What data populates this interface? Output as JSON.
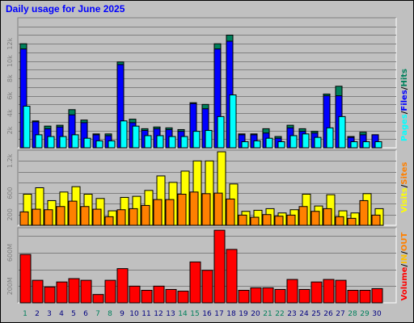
{
  "title": "Daily usage for June 2025",
  "colors": {
    "hits": "#00805c",
    "files": "#0000ff",
    "pages": "#00ffff",
    "sites": "#ff8000",
    "visits": "#ffff00",
    "volume": "#ff0000",
    "in": "#ffc000",
    "out": "#ff8000",
    "weekend": "#00805c"
  },
  "chart_data": [
    {
      "type": "bar",
      "name": "requests",
      "categories": [
        "1",
        "2",
        "3",
        "4",
        "5",
        "6",
        "7",
        "8",
        "9",
        "10",
        "11",
        "12",
        "13",
        "14",
        "15",
        "16",
        "17",
        "18",
        "19",
        "20",
        "21",
        "22",
        "23",
        "24",
        "25",
        "26",
        "27",
        "28",
        "29",
        "30"
      ],
      "ylim": [
        0,
        15000
      ],
      "yticks": [
        "2k",
        "4k",
        "6k",
        "8k",
        "10k",
        "12k"
      ],
      "ytick_values": [
        2000,
        4000,
        6000,
        8000,
        10000,
        12000
      ],
      "legend": [
        "Pages",
        "Files",
        "Hits"
      ],
      "series": [
        {
          "name": "Hits",
          "color": "#00805c",
          "values": [
            12000,
            3100,
            2500,
            2600,
            4400,
            3200,
            1600,
            1600,
            9900,
            3300,
            2200,
            2400,
            2300,
            2100,
            5200,
            5000,
            12000,
            13000,
            1600,
            1600,
            2200,
            1300,
            2600,
            2200,
            1900,
            6200,
            7100,
            1300,
            1800,
            1500
          ]
        },
        {
          "name": "Files",
          "color": "#0000ff",
          "values": [
            11400,
            3000,
            2200,
            2400,
            3800,
            2900,
            1500,
            1400,
            9600,
            2900,
            2000,
            2200,
            2100,
            1900,
            5100,
            4500,
            11400,
            12300,
            1500,
            1500,
            1700,
            1100,
            2300,
            1900,
            1700,
            6000,
            6000,
            1200,
            1500,
            1500
          ]
        },
        {
          "name": "Pages",
          "color": "#00ffff",
          "values": [
            4800,
            1500,
            1300,
            1300,
            1500,
            1100,
            800,
            800,
            3100,
            2500,
            1400,
            1400,
            1300,
            1300,
            1900,
            2000,
            3600,
            6100,
            700,
            800,
            1100,
            700,
            1400,
            1600,
            1200,
            2300,
            3600,
            700,
            700,
            700
          ]
        }
      ]
    },
    {
      "type": "bar",
      "name": "visitors",
      "categories": [
        "1",
        "2",
        "3",
        "4",
        "5",
        "6",
        "7",
        "8",
        "9",
        "10",
        "11",
        "12",
        "13",
        "14",
        "15",
        "16",
        "17",
        "18",
        "19",
        "20",
        "21",
        "22",
        "23",
        "24",
        "25",
        "26",
        "27",
        "28",
        "29",
        "30"
      ],
      "ylim": [
        0,
        1400
      ],
      "yticks": [
        "200",
        "600",
        "1.2k"
      ],
      "ytick_values": [
        200,
        600,
        1200
      ],
      "legend": [
        "Sites",
        "Visits"
      ],
      "series": [
        {
          "name": "Visits",
          "color": "#ffff00",
          "values": [
            580,
            700,
            460,
            620,
            720,
            580,
            500,
            270,
            520,
            540,
            650,
            920,
            800,
            1010,
            1200,
            1200,
            1370,
            770,
            260,
            280,
            310,
            230,
            290,
            580,
            360,
            570,
            270,
            230,
            590,
            310
          ]
        },
        {
          "name": "Sites",
          "color": "#ff8000",
          "values": [
            250,
            300,
            290,
            350,
            450,
            350,
            300,
            160,
            290,
            310,
            370,
            480,
            480,
            580,
            620,
            590,
            600,
            490,
            190,
            150,
            200,
            170,
            190,
            350,
            260,
            310,
            160,
            130,
            460,
            190
          ]
        }
      ]
    },
    {
      "type": "bar",
      "name": "volume",
      "categories": [
        "1",
        "2",
        "3",
        "4",
        "5",
        "6",
        "7",
        "8",
        "9",
        "10",
        "11",
        "12",
        "13",
        "14",
        "15",
        "16",
        "17",
        "18",
        "19",
        "20",
        "21",
        "22",
        "23",
        "24",
        "25",
        "26",
        "27",
        "28",
        "29",
        "30"
      ],
      "ylim": [
        0,
        900
      ],
      "yticks": [
        "200M",
        "600M"
      ],
      "ytick_values": [
        200,
        600
      ],
      "unit": "M",
      "legend": [
        "Volume",
        "IN",
        "OUT"
      ],
      "series": [
        {
          "name": "Volume",
          "color": "#ff0000",
          "values": [
            580,
            270,
            190,
            250,
            290,
            270,
            100,
            270,
            410,
            200,
            150,
            200,
            160,
            140,
            490,
            390,
            870,
            640,
            150,
            180,
            180,
            160,
            280,
            160,
            250,
            280,
            270,
            150,
            150,
            170
          ]
        }
      ]
    }
  ],
  "legends": {
    "top": [
      "Pages",
      "/",
      "Files",
      "/",
      "Hits"
    ],
    "mid": [
      "Visits",
      "/",
      "Sites"
    ],
    "bot": [
      "Volume",
      "/",
      "IN",
      "/",
      "OUT"
    ]
  },
  "weekend_days": [
    "1",
    "7",
    "8",
    "14",
    "15",
    "21",
    "22",
    "28",
    "29"
  ]
}
